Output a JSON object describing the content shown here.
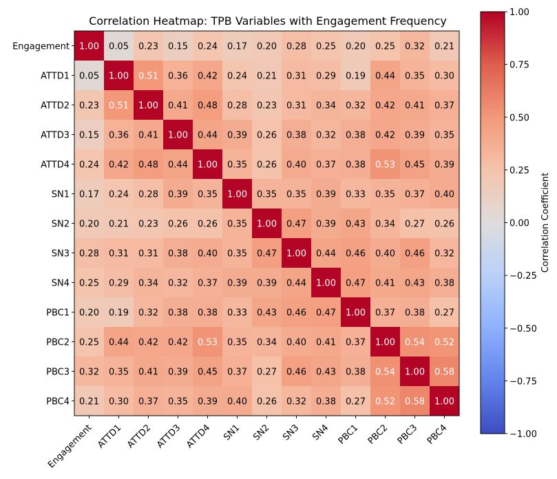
{
  "chart_data": {
    "type": "heatmap",
    "title": "Correlation Heatmap: TPB Variables with Engagement Frequency",
    "xlabel": "",
    "ylabel": "",
    "labels": [
      "Engagement",
      "ATTD1",
      "ATTD2",
      "ATTD3",
      "ATTD4",
      "SN1",
      "SN2",
      "SN3",
      "SN4",
      "PBC1",
      "PBC2",
      "PBC3",
      "PBC4"
    ],
    "matrix": [
      [
        1.0,
        0.05,
        0.23,
        0.15,
        0.24,
        0.17,
        0.2,
        0.28,
        0.25,
        0.2,
        0.25,
        0.32,
        0.21
      ],
      [
        0.05,
        1.0,
        0.51,
        0.36,
        0.42,
        0.24,
        0.21,
        0.31,
        0.29,
        0.19,
        0.44,
        0.35,
        0.3
      ],
      [
        0.23,
        0.51,
        1.0,
        0.41,
        0.48,
        0.28,
        0.23,
        0.31,
        0.34,
        0.32,
        0.42,
        0.41,
        0.37
      ],
      [
        0.15,
        0.36,
        0.41,
        1.0,
        0.44,
        0.39,
        0.26,
        0.38,
        0.32,
        0.38,
        0.42,
        0.39,
        0.35
      ],
      [
        0.24,
        0.42,
        0.48,
        0.44,
        1.0,
        0.35,
        0.26,
        0.4,
        0.37,
        0.38,
        0.53,
        0.45,
        0.39
      ],
      [
        0.17,
        0.24,
        0.28,
        0.39,
        0.35,
        1.0,
        0.35,
        0.35,
        0.39,
        0.33,
        0.35,
        0.37,
        0.4
      ],
      [
        0.2,
        0.21,
        0.23,
        0.26,
        0.26,
        0.35,
        1.0,
        0.47,
        0.39,
        0.43,
        0.34,
        0.27,
        0.26
      ],
      [
        0.28,
        0.31,
        0.31,
        0.38,
        0.4,
        0.35,
        0.47,
        1.0,
        0.44,
        0.46,
        0.4,
        0.46,
        0.32
      ],
      [
        0.25,
        0.29,
        0.34,
        0.32,
        0.37,
        0.39,
        0.39,
        0.44,
        1.0,
        0.47,
        0.41,
        0.43,
        0.38
      ],
      [
        0.2,
        0.19,
        0.32,
        0.38,
        0.38,
        0.33,
        0.43,
        0.46,
        0.47,
        1.0,
        0.37,
        0.38,
        0.27
      ],
      [
        0.25,
        0.44,
        0.42,
        0.42,
        0.53,
        0.35,
        0.34,
        0.4,
        0.41,
        0.37,
        1.0,
        0.54,
        0.52
      ],
      [
        0.32,
        0.35,
        0.41,
        0.39,
        0.45,
        0.37,
        0.27,
        0.46,
        0.43,
        0.38,
        0.54,
        1.0,
        0.58
      ],
      [
        0.21,
        0.3,
        0.37,
        0.35,
        0.39,
        0.4,
        0.26,
        0.32,
        0.38,
        0.27,
        0.52,
        0.58,
        1.0
      ]
    ],
    "colorscale": "coolwarm",
    "vmin": -1.0,
    "vmax": 1.0,
    "colorbar": {
      "label": "Correlation Coefficient",
      "ticks": [
        "1.00",
        "0.75",
        "0.50",
        "0.25",
        "0.00",
        "−0.25",
        "−0.50",
        "−0.75",
        "−1.00"
      ],
      "tick_values": [
        1.0,
        0.75,
        0.5,
        0.25,
        0.0,
        -0.25,
        -0.5,
        -0.75,
        -1.0
      ]
    },
    "grid": false
  }
}
